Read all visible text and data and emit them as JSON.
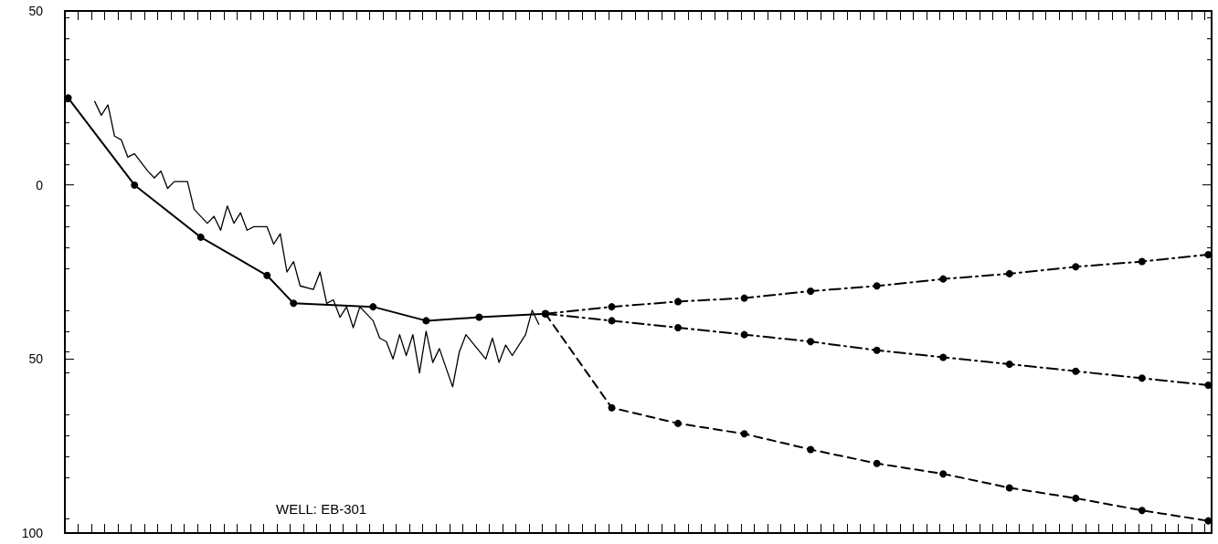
{
  "chart_data": {
    "type": "line",
    "categories": [
      null,
      null,
      null,
      null,
      null,
      null,
      null,
      null,
      null,
      null,
      null,
      null,
      null,
      null,
      null,
      null,
      null,
      null,
      null,
      null,
      null,
      null,
      null,
      null,
      null,
      null,
      null,
      null,
      null,
      null,
      null,
      null,
      null,
      null,
      null,
      null,
      null,
      null,
      null,
      null,
      null,
      null,
      null,
      null,
      null,
      null,
      null,
      null,
      null,
      null,
      null,
      null,
      null,
      null,
      null,
      null,
      null,
      null,
      null,
      null,
      null,
      null,
      null,
      null,
      null,
      null,
      null,
      null,
      null,
      null,
      null,
      null,
      null,
      null,
      null,
      null,
      null,
      null,
      null,
      null,
      null,
      null,
      null,
      null,
      null,
      null,
      null,
      null,
      null,
      null,
      null,
      null,
      null,
      null,
      null,
      null,
      null,
      null,
      null,
      null,
      null,
      null,
      null,
      null,
      null,
      null,
      null,
      null,
      null,
      null,
      null,
      null,
      null,
      null,
      null,
      null,
      null,
      null,
      null,
      null,
      null,
      null,
      null,
      null,
      null,
      null,
      null,
      null,
      null,
      null,
      null,
      null,
      null,
      null,
      null,
      null,
      null,
      null,
      null,
      null,
      null,
      null,
      null,
      null,
      null,
      null,
      null,
      null,
      null,
      null,
      null,
      null,
      null,
      null,
      null,
      null,
      null,
      null,
      null,
      null,
      null,
      null,
      null,
      null,
      null,
      null,
      null,
      null,
      null,
      null,
      null,
      null,
      null
    ],
    "ylim": [
      100,
      -50
    ],
    "yticks": [
      {
        "value": -50,
        "label": "50"
      },
      0,
      50,
      100
    ],
    "grid": false,
    "tick_labels": "y",
    "annotations": [
      "WELL: EB-301"
    ],
    "series": [
      {
        "color": "#000000",
        "marker": "circle",
        "line_style": "solid",
        "values": [
          -25,
          null,
          null,
          null,
          null,
          null,
          null,
          null,
          null,
          null,
          0,
          null,
          null,
          null,
          null,
          null,
          null,
          null,
          null,
          null,
          15,
          null,
          null,
          null,
          null,
          null,
          null,
          null,
          null,
          null,
          26,
          null,
          null,
          null,
          34,
          null,
          null,
          null,
          null,
          null,
          null,
          null,
          null,
          null,
          null,
          null,
          35,
          null,
          null,
          null,
          null,
          null,
          null,
          null,
          39,
          null,
          null,
          null,
          null,
          null,
          null,
          null,
          38,
          null,
          null,
          null,
          null,
          null,
          null,
          null,
          null,
          null,
          37,
          null,
          null,
          null,
          null,
          null,
          null,
          null,
          null,
          null,
          null,
          null,
          null,
          null,
          null,
          null,
          null,
          null,
          null,
          null,
          null,
          null,
          null,
          null,
          null,
          null,
          null,
          null,
          null,
          null,
          null,
          null,
          null,
          null,
          null,
          null,
          null,
          null,
          null,
          null,
          null,
          null,
          null,
          null,
          null,
          null,
          null,
          null,
          null,
          null,
          null,
          null,
          null,
          null,
          null,
          null,
          null,
          null,
          null,
          null,
          null,
          null,
          null,
          null,
          null,
          null,
          null,
          null,
          null,
          null,
          null,
          null,
          null,
          null,
          null,
          null,
          null,
          null,
          null,
          null,
          null,
          null,
          null,
          null,
          null,
          null,
          null,
          null,
          null,
          null,
          null,
          null,
          null,
          null,
          null,
          null,
          null,
          null,
          null,
          null,
          null
        ]
      },
      {
        "color": "#000000",
        "marker": "none",
        "line_style": "solid",
        "values": [
          null,
          null,
          null,
          null,
          -24,
          -20,
          -23,
          -14,
          -13,
          -8,
          -9,
          null,
          -4,
          -2,
          -4,
          1,
          -1,
          null,
          -1,
          7,
          null,
          11,
          9,
          13,
          6,
          11,
          8,
          13,
          12,
          null,
          12,
          17,
          14,
          25,
          22,
          29,
          null,
          30,
          25,
          34,
          33,
          38,
          35,
          41,
          35,
          null,
          39,
          44,
          45,
          50,
          43,
          49,
          43,
          54,
          42,
          51,
          47,
          null,
          58,
          48,
          43,
          null,
          null,
          50,
          44,
          51,
          46,
          49,
          null,
          43,
          36,
          40,
          null,
          null,
          null,
          null,
          null,
          null,
          null,
          null,
          null,
          null,
          null,
          null,
          null,
          null,
          null,
          null,
          null,
          null,
          null,
          null,
          null,
          null,
          null,
          null,
          null,
          null,
          null,
          null,
          null,
          null,
          null,
          null,
          null,
          null,
          null,
          null,
          null,
          null,
          null,
          null,
          null,
          null,
          null,
          null,
          null,
          null,
          null,
          null,
          null,
          null,
          null,
          null,
          null,
          null,
          null,
          null,
          null,
          null,
          null,
          null,
          null,
          null,
          null,
          null,
          null,
          null,
          null,
          null,
          null,
          null,
          null,
          null,
          null,
          null,
          null,
          null,
          null,
          null,
          null,
          null,
          null,
          null,
          null,
          null,
          null,
          null,
          null,
          null,
          null,
          null,
          null,
          null,
          null,
          null,
          null,
          null,
          null,
          null,
          null,
          null,
          null
        ]
      },
      {
        "color": "#000000",
        "marker": "circle",
        "line_style": "dashdot",
        "values": [
          null,
          null,
          null,
          null,
          null,
          null,
          null,
          null,
          null,
          null,
          null,
          null,
          null,
          null,
          null,
          null,
          null,
          null,
          null,
          null,
          null,
          null,
          null,
          null,
          null,
          null,
          null,
          null,
          null,
          null,
          null,
          null,
          null,
          null,
          null,
          null,
          null,
          null,
          null,
          null,
          null,
          null,
          null,
          null,
          null,
          null,
          null,
          null,
          null,
          null,
          null,
          null,
          null,
          null,
          null,
          null,
          null,
          null,
          null,
          null,
          null,
          null,
          null,
          null,
          null,
          null,
          null,
          null,
          null,
          null,
          null,
          null,
          37,
          null,
          null,
          null,
          null,
          null,
          null,
          null,
          null,
          null,
          35,
          null,
          null,
          null,
          null,
          null,
          null,
          null,
          null,
          null,
          33.5,
          null,
          null,
          null,
          null,
          null,
          null,
          null,
          null,
          null,
          32.5,
          null,
          null,
          null,
          null,
          null,
          null,
          null,
          null,
          null,
          30.5,
          null,
          null,
          null,
          null,
          null,
          null,
          null,
          null,
          null,
          29,
          null,
          null,
          null,
          null,
          null,
          null,
          null,
          null,
          null,
          27,
          null,
          null,
          null,
          null,
          null,
          null,
          null,
          null,
          null,
          25.5,
          null,
          null,
          null,
          null,
          null,
          null,
          null,
          null,
          null,
          23.5,
          null,
          null,
          null,
          null,
          null,
          null,
          null,
          null,
          null,
          22,
          null,
          null,
          null,
          null,
          null,
          null,
          null,
          null,
          null,
          20
        ]
      },
      {
        "color": "#000000",
        "marker": "circle",
        "line_style": "dashdot",
        "values": [
          null,
          null,
          null,
          null,
          null,
          null,
          null,
          null,
          null,
          null,
          null,
          null,
          null,
          null,
          null,
          null,
          null,
          null,
          null,
          null,
          null,
          null,
          null,
          null,
          null,
          null,
          null,
          null,
          null,
          null,
          null,
          null,
          null,
          null,
          null,
          null,
          null,
          null,
          null,
          null,
          null,
          null,
          null,
          null,
          null,
          null,
          null,
          null,
          null,
          null,
          null,
          null,
          null,
          null,
          null,
          null,
          null,
          null,
          null,
          null,
          null,
          null,
          null,
          null,
          null,
          null,
          null,
          null,
          null,
          null,
          null,
          null,
          37,
          null,
          null,
          null,
          null,
          null,
          null,
          null,
          null,
          null,
          39,
          null,
          null,
          null,
          null,
          null,
          null,
          null,
          null,
          null,
          41,
          null,
          null,
          null,
          null,
          null,
          null,
          null,
          null,
          null,
          43,
          null,
          null,
          null,
          null,
          null,
          null,
          null,
          null,
          null,
          45,
          null,
          null,
          null,
          null,
          null,
          null,
          null,
          null,
          null,
          47.5,
          null,
          null,
          null,
          null,
          null,
          null,
          null,
          null,
          null,
          49.5,
          null,
          null,
          null,
          null,
          null,
          null,
          null,
          null,
          null,
          51.5,
          null,
          null,
          null,
          null,
          null,
          null,
          null,
          null,
          null,
          53.5,
          null,
          null,
          null,
          null,
          null,
          null,
          null,
          null,
          null,
          55.5,
          null,
          null,
          null,
          null,
          null,
          null,
          null,
          null,
          null,
          57.5
        ]
      },
      {
        "color": "#000000",
        "marker": "circle",
        "line_style": "dashed",
        "values": [
          null,
          null,
          null,
          null,
          null,
          null,
          null,
          null,
          null,
          null,
          null,
          null,
          null,
          null,
          null,
          null,
          null,
          null,
          null,
          null,
          null,
          null,
          null,
          null,
          null,
          null,
          null,
          null,
          null,
          null,
          null,
          null,
          null,
          null,
          null,
          null,
          null,
          null,
          null,
          null,
          null,
          null,
          null,
          null,
          null,
          null,
          null,
          null,
          null,
          null,
          null,
          null,
          null,
          null,
          null,
          null,
          null,
          null,
          null,
          null,
          null,
          null,
          null,
          null,
          null,
          null,
          null,
          null,
          null,
          null,
          null,
          null,
          37,
          null,
          null,
          null,
          null,
          null,
          null,
          null,
          null,
          null,
          64,
          null,
          null,
          null,
          null,
          null,
          null,
          null,
          null,
          null,
          68.5,
          null,
          null,
          null,
          null,
          null,
          null,
          null,
          null,
          null,
          71.5,
          null,
          null,
          null,
          null,
          null,
          null,
          null,
          null,
          null,
          76,
          null,
          null,
          null,
          null,
          null,
          null,
          null,
          null,
          null,
          80,
          null,
          null,
          null,
          null,
          null,
          null,
          null,
          null,
          null,
          83,
          null,
          null,
          null,
          null,
          null,
          null,
          null,
          null,
          null,
          87,
          null,
          null,
          null,
          null,
          null,
          null,
          null,
          null,
          null,
          90,
          null,
          null,
          null,
          null,
          null,
          null,
          null,
          null,
          null,
          93.5,
          null,
          null,
          null,
          null,
          null,
          null,
          null,
          null,
          null,
          96.5
        ]
      }
    ]
  }
}
